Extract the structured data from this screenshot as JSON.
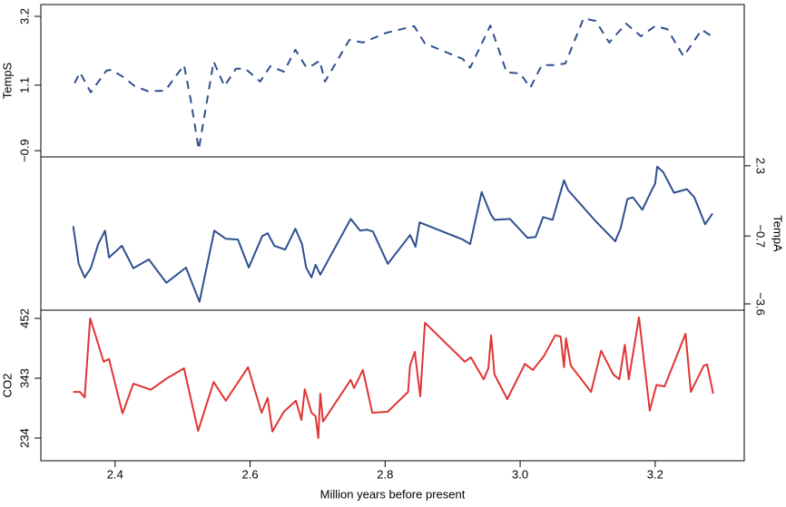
{
  "chart_data": [
    {
      "type": "line",
      "ylabel": "TempS",
      "y_axis_side": "left",
      "line_style": "dashed",
      "color": "#2f4f8f",
      "xlim": [
        2.29,
        3.332
      ],
      "ylim": [
        -1.09,
        3.56
      ],
      "yticks": [
        3.2,
        1.1,
        {
          "value": -0.9,
          "label": "−0.9"
        }
      ],
      "series": [
        {
          "name": "TempS",
          "color": "#2f4f8f",
          "x": [
            2.34,
            2.348,
            2.364,
            2.387,
            2.394,
            2.412,
            2.429,
            2.449,
            2.474,
            2.502,
            2.512,
            2.524,
            2.546,
            2.562,
            2.579,
            2.593,
            2.615,
            2.63,
            2.65,
            2.667,
            2.683,
            2.693,
            2.703,
            2.711,
            2.747,
            2.767,
            2.802,
            2.843,
            2.859,
            2.915,
            2.926,
            2.956,
            2.98,
            3.0,
            3.015,
            3.032,
            3.05,
            3.067,
            3.094,
            3.112,
            3.132,
            3.157,
            3.179,
            3.2,
            3.218,
            3.242,
            3.269,
            3.282
          ],
          "values": [
            1.16,
            1.49,
            0.88,
            1.54,
            1.57,
            1.35,
            1.07,
            0.91,
            0.93,
            1.71,
            0.66,
            -0.86,
            1.82,
            1.07,
            1.6,
            1.6,
            1.21,
            1.68,
            1.51,
            2.18,
            1.65,
            1.71,
            1.85,
            1.21,
            2.48,
            2.4,
            2.7,
            2.9,
            2.37,
            1.9,
            1.63,
            2.92,
            1.49,
            1.46,
            1.02,
            1.71,
            1.71,
            1.76,
            3.14,
            3.06,
            2.4,
            2.98,
            2.59,
            2.9,
            2.81,
            1.98,
            2.79,
            2.62
          ]
        }
      ]
    },
    {
      "type": "line",
      "ylabel": "TempA",
      "y_axis_side": "right",
      "line_style": "solid",
      "color": "#2f4f8f",
      "xlim": [
        2.29,
        3.332
      ],
      "ylim": [
        -3.87,
        2.68
      ],
      "yticks": [
        2.3,
        {
          "value": -0.7,
          "label": "−0.7"
        },
        {
          "value": -3.6,
          "label": "−3.6"
        }
      ],
      "series": [
        {
          "name": "TempA",
          "color": "#2f4f8f",
          "x": [
            2.338,
            2.346,
            2.355,
            2.364,
            2.375,
            2.385,
            2.391,
            2.41,
            2.427,
            2.45,
            2.476,
            2.505,
            2.525,
            2.547,
            2.564,
            2.582,
            2.598,
            2.618,
            2.626,
            2.636,
            2.652,
            2.667,
            2.677,
            2.683,
            2.691,
            2.697,
            2.704,
            2.749,
            2.763,
            2.773,
            2.782,
            2.804,
            2.837,
            2.845,
            2.851,
            2.915,
            2.926,
            2.943,
            2.956,
            2.962,
            2.985,
            3.011,
            3.023,
            3.034,
            3.048,
            3.065,
            3.071,
            3.11,
            3.141,
            3.149,
            3.159,
            3.167,
            3.181,
            3.195,
            3.2,
            3.203,
            3.212,
            3.228,
            3.247,
            3.258,
            3.274,
            3.285
          ],
          "values": [
            -0.28,
            -1.89,
            -2.47,
            -2.08,
            -1.05,
            -0.47,
            -1.62,
            -1.12,
            -2.08,
            -1.7,
            -2.7,
            -2.05,
            -3.51,
            -0.47,
            -0.82,
            -0.85,
            -2.05,
            -0.7,
            -0.58,
            -1.12,
            -1.28,
            -0.39,
            -1.05,
            -2.05,
            -2.47,
            -1.93,
            -2.35,
            0.03,
            -0.47,
            -0.43,
            -0.51,
            -1.89,
            -0.66,
            -1.16,
            -0.12,
            -0.85,
            -1.05,
            1.18,
            0.26,
            -0.01,
            0.03,
            -0.78,
            -0.74,
            0.11,
            -0.01,
            1.68,
            1.26,
            -0.01,
            -0.93,
            -0.35,
            0.88,
            0.95,
            0.42,
            1.26,
            1.53,
            2.26,
            2.03,
            1.15,
            1.3,
            0.95,
            -0.2,
            0.26
          ]
        }
      ]
    },
    {
      "type": "line",
      "ylabel": "CO2",
      "y_axis_side": "left",
      "line_style": "solid",
      "color": "#e03535",
      "xlim": [
        2.29,
        3.332
      ],
      "ylim": [
        192.7,
        466.9
      ],
      "yticks": [
        234,
        343,
        452
      ],
      "xticks": [
        2.4,
        2.6,
        2.8,
        {
          "value": 3,
          "label": "3.0"
        },
        3.2
      ],
      "xlabel": "Million years before present",
      "series": [
        {
          "name": "CO2",
          "color": "#e03535",
          "x": [
            2.338,
            2.348,
            2.355,
            2.363,
            2.372,
            2.383,
            2.391,
            2.411,
            2.427,
            2.453,
            2.477,
            2.502,
            2.523,
            2.546,
            2.564,
            2.597,
            2.617,
            2.626,
            2.633,
            2.65,
            2.668,
            2.676,
            2.681,
            2.691,
            2.697,
            2.701,
            2.704,
            2.708,
            2.749,
            2.754,
            2.767,
            2.781,
            2.804,
            2.834,
            2.837,
            2.844,
            2.852,
            2.859,
            2.918,
            2.927,
            2.946,
            2.953,
            2.957,
            2.962,
            2.981,
            3.007,
            3.019,
            3.035,
            3.052,
            3.06,
            3.065,
            3.068,
            3.075,
            3.105,
            3.12,
            3.138,
            3.147,
            3.155,
            3.161,
            3.176,
            3.192,
            3.202,
            3.214,
            3.245,
            3.253,
            3.272,
            3.277,
            3.286
          ],
          "values": [
            318,
            318,
            308,
            452,
            417,
            373,
            378,
            279,
            333,
            322,
            343,
            361,
            247,
            336,
            302,
            363,
            280,
            307,
            246,
            282,
            302,
            267,
            323,
            280,
            274,
            234,
            315,
            264,
            340,
            325,
            358,
            280,
            282,
            318,
            366,
            391,
            310,
            444,
            373,
            381,
            341,
            361,
            421,
            350,
            305,
            369,
            358,
            383,
            421,
            419,
            363,
            416,
            366,
            318,
            393,
            350,
            341,
            404,
            341,
            454,
            284,
            331,
            328,
            424,
            318,
            366,
            368,
            315
          ]
        }
      ]
    }
  ]
}
